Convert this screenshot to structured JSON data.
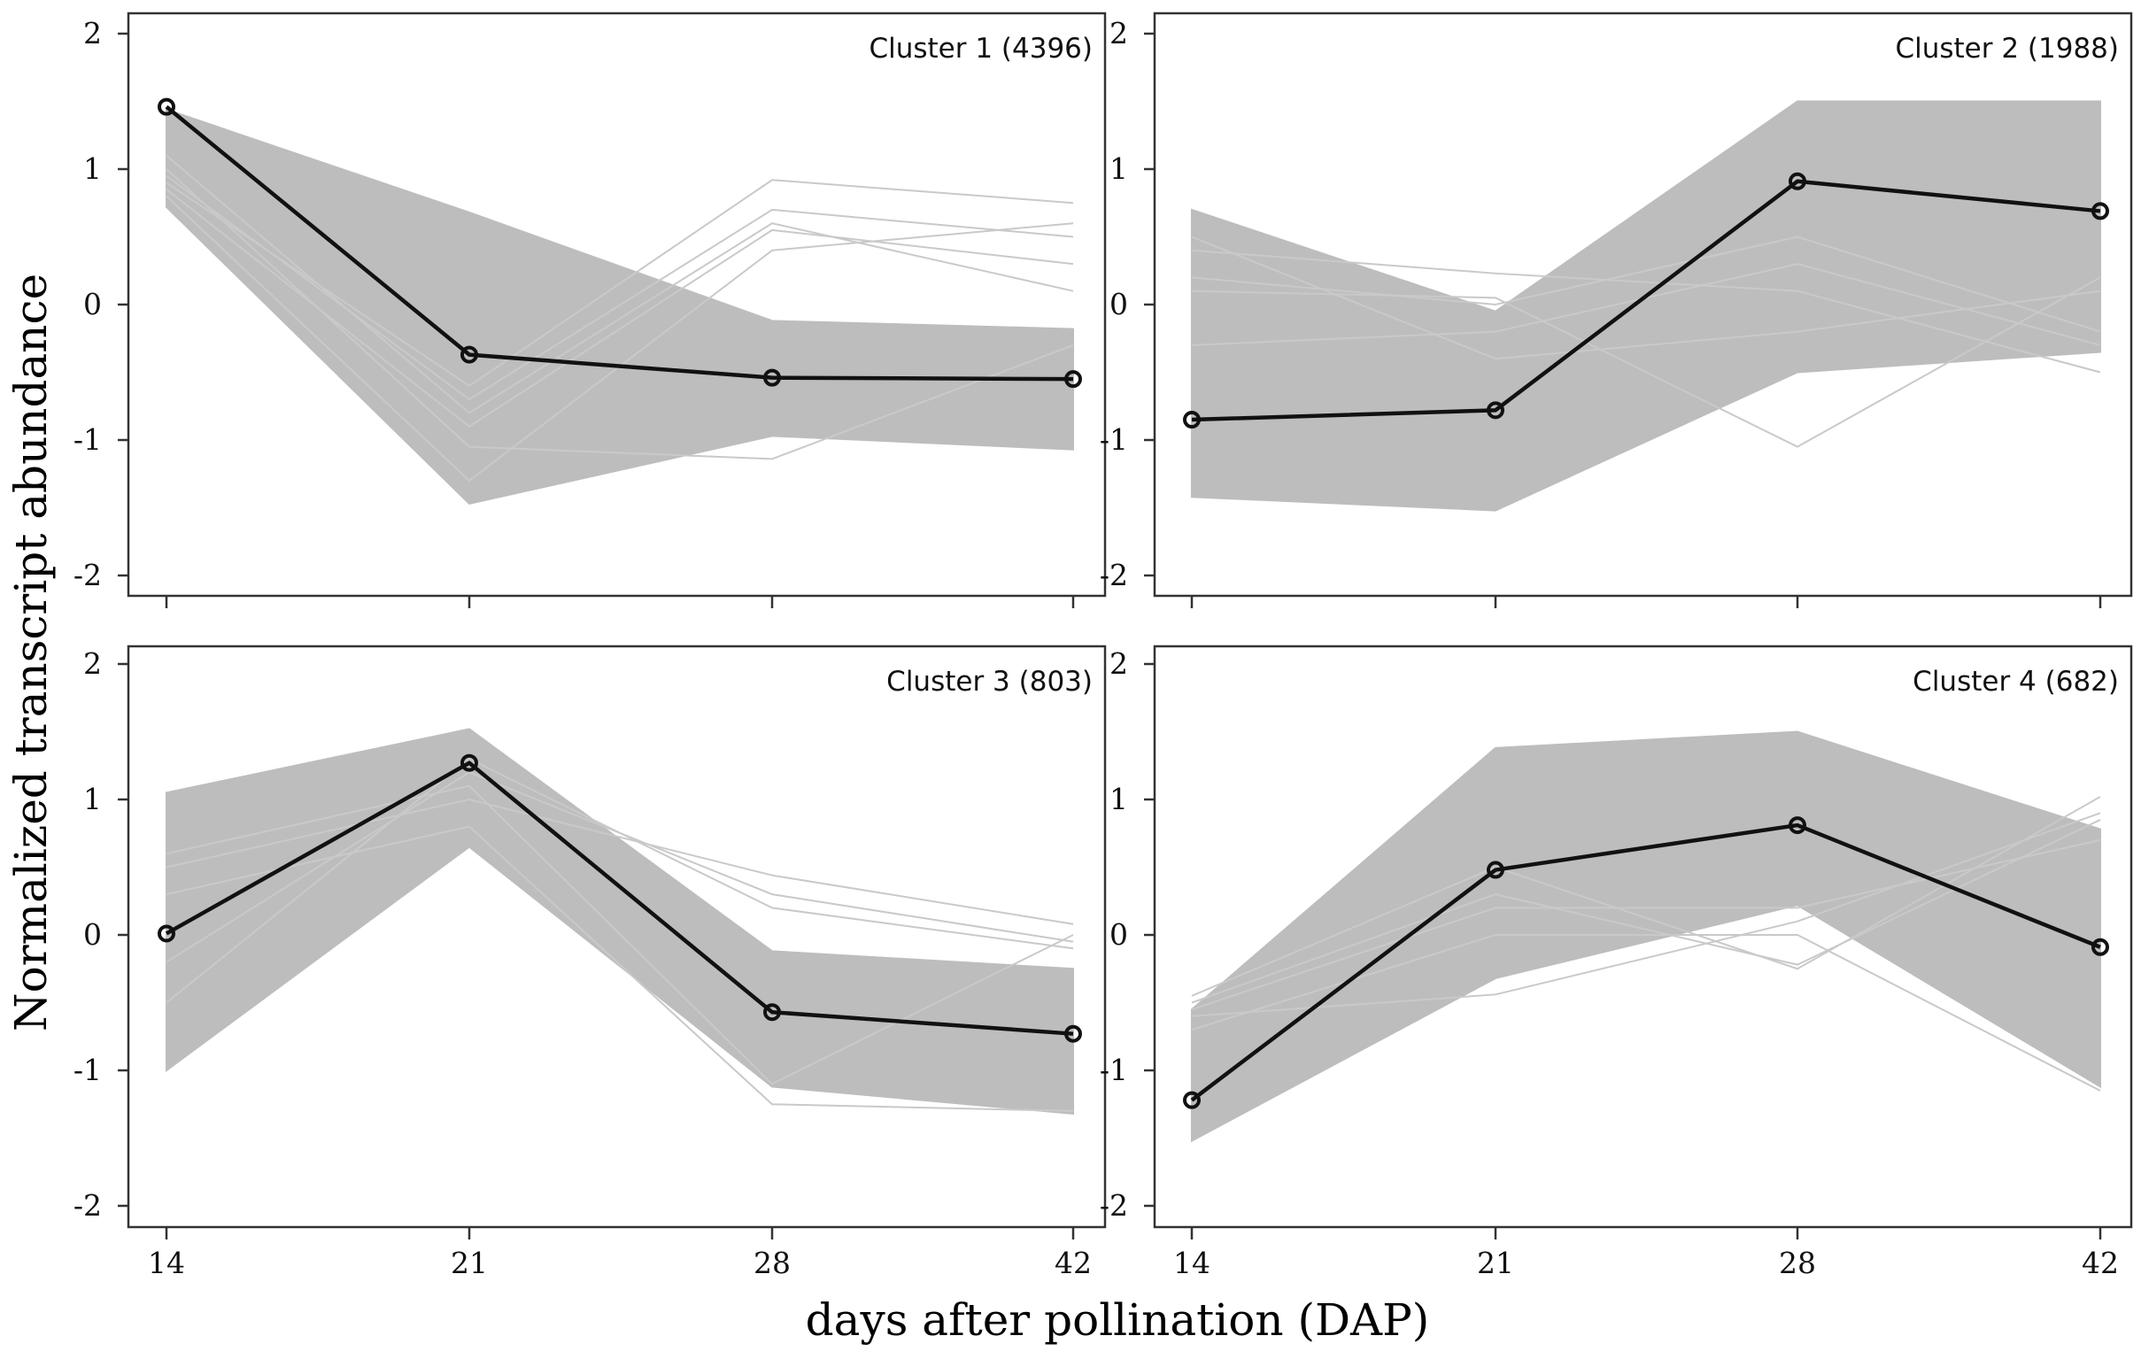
{
  "figure": {
    "ylabel": "Normalized transcript abundance",
    "xlabel": "days after pollination (DAP)"
  },
  "colors": {
    "envelope": "#bdbdbd",
    "member_line": "#c9c9c9",
    "centroid": "#111111",
    "frame": "#333333"
  },
  "chart_data": [
    {
      "type": "line",
      "title": "Cluster 1 (4396)",
      "categories": [
        "14",
        "21",
        "28",
        "42"
      ],
      "ylim": [
        -2.2,
        2.1
      ],
      "yticks": [
        -2,
        -1,
        0,
        1,
        2
      ],
      "centroid": [
        1.46,
        -0.37,
        -0.54,
        -0.55
      ],
      "envelope_upper": [
        1.44,
        0.68,
        -0.12,
        -0.18
      ],
      "envelope_lower": [
        0.72,
        -1.47,
        -0.97,
        -1.07
      ],
      "member_lines": [
        [
          1.0,
          -1.05,
          -1.14,
          -0.3
        ],
        [
          0.9,
          -0.6,
          0.92,
          0.75
        ],
        [
          0.95,
          -0.7,
          0.7,
          0.5
        ],
        [
          0.85,
          -0.9,
          0.55,
          0.3
        ],
        [
          0.8,
          -1.3,
          0.4,
          0.6
        ],
        [
          1.1,
          -0.8,
          0.6,
          0.1
        ]
      ]
    },
    {
      "type": "line",
      "title": "Cluster 2 (1988)",
      "categories": [
        "14",
        "21",
        "28",
        "42"
      ],
      "ylim": [
        -2.2,
        2.1
      ],
      "yticks": [
        -2,
        -1,
        0,
        1,
        2
      ],
      "centroid": [
        -0.85,
        -0.78,
        0.91,
        0.69
      ],
      "envelope_upper": [
        0.7,
        -0.05,
        1.5,
        1.5
      ],
      "envelope_lower": [
        -1.42,
        -1.52,
        -0.5,
        -0.35
      ],
      "member_lines": [
        [
          0.4,
          0.23,
          0.1,
          -0.5
        ],
        [
          0.1,
          0.05,
          -1.05,
          0.2
        ],
        [
          -0.3,
          -0.2,
          0.3,
          -0.3
        ],
        [
          0.5,
          -0.4,
          -0.2,
          0.1
        ],
        [
          0.2,
          0.0,
          0.5,
          -0.2
        ]
      ]
    },
    {
      "type": "line",
      "title": "Cluster 3 (803)",
      "categories": [
        "14",
        "21",
        "28",
        "42"
      ],
      "ylim": [
        -2.2,
        2.1
      ],
      "yticks": [
        -2,
        -1,
        0,
        1,
        2
      ],
      "centroid": [
        0.01,
        1.27,
        -0.57,
        -0.73
      ],
      "envelope_upper": [
        1.05,
        1.52,
        -0.12,
        -0.25
      ],
      "envelope_lower": [
        -1.0,
        0.65,
        -1.12,
        -1.32
      ],
      "member_lines": [
        [
          0.5,
          1.0,
          0.44,
          0.08
        ],
        [
          -0.2,
          1.2,
          0.3,
          -0.05
        ],
        [
          0.3,
          0.8,
          -1.25,
          -1.3
        ],
        [
          0.6,
          1.1,
          -1.1,
          0.0
        ],
        [
          -0.5,
          1.3,
          0.2,
          -0.1
        ]
      ]
    },
    {
      "type": "line",
      "title": "Cluster 4 (682)",
      "categories": [
        "14",
        "21",
        "28",
        "42"
      ],
      "ylim": [
        -2.2,
        2.1
      ],
      "yticks": [
        -2,
        -1,
        0,
        1,
        2
      ],
      "centroid": [
        -1.22,
        0.48,
        0.81,
        -0.09
      ],
      "envelope_upper": [
        -0.55,
        1.38,
        1.5,
        0.78
      ],
      "envelope_lower": [
        -1.52,
        -0.32,
        0.22,
        -1.12
      ],
      "member_lines": [
        [
          -0.45,
          0.5,
          -0.25,
          1.02
        ],
        [
          -0.6,
          -0.44,
          0.1,
          0.9
        ],
        [
          -0.5,
          0.3,
          -0.22,
          0.85
        ],
        [
          -0.7,
          0.0,
          0.0,
          -1.15
        ],
        [
          -0.55,
          0.2,
          0.2,
          0.7
        ]
      ]
    }
  ]
}
